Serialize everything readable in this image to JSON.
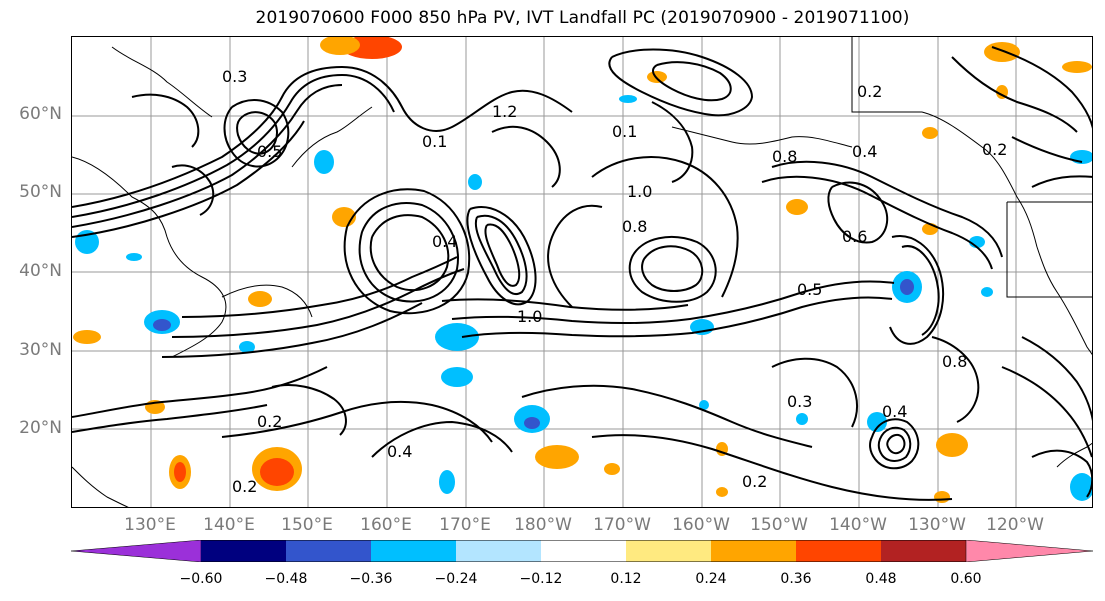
{
  "title": "2019070600 F000 850 hPa PV, IVT Landfall PC (2019070900 - 2019071100)",
  "lat_labels": [
    "60°N",
    "50°N",
    "40°N",
    "30°N",
    "20°N"
  ],
  "lon_labels": [
    "130°E",
    "140°E",
    "150°E",
    "160°E",
    "170°E",
    "180°W",
    "170°W",
    "160°W",
    "150°W",
    "140°W",
    "130°W",
    "120°W"
  ],
  "colorbar": {
    "ticks": [
      "−0.60",
      "−0.48",
      "−0.36",
      "−0.24",
      "−0.12",
      "0.12",
      "0.24",
      "0.36",
      "0.48",
      "0.60"
    ],
    "colors": [
      "#9b30d9",
      "#00007f",
      "#3355cc",
      "#00bfff",
      "#b3e5ff",
      "#ffffff",
      "#ffea80",
      "#ffa500",
      "#ff4500",
      "#b22222",
      "#ff88aa"
    ]
  },
  "contour_labels": [
    "1.2",
    "1.0",
    "0.8",
    "0.6",
    "0.5",
    "0.4",
    "0.3",
    "0.2",
    "0.1",
    "1.0",
    "0.8",
    "0.4",
    "0.2",
    "0.2",
    "0.5",
    "0.4",
    "0.3",
    "0.2",
    "0.1",
    "0.8",
    "0.4",
    "0.2"
  ]
}
